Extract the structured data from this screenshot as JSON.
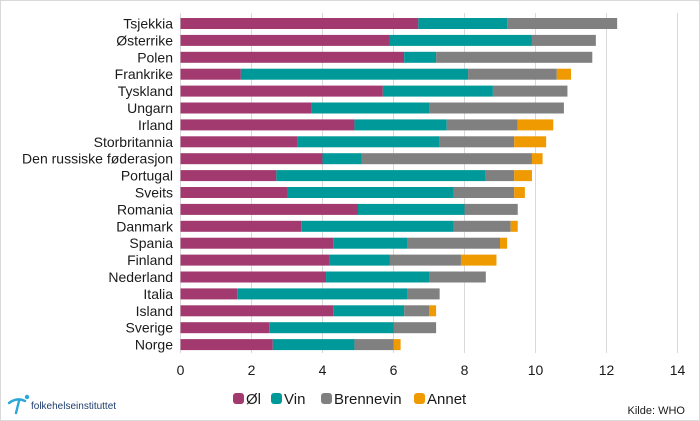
{
  "chart_data": {
    "type": "bar",
    "orientation": "horizontal",
    "stacked": true,
    "title": "",
    "xlabel": "",
    "ylabel": "",
    "xlim": [
      0,
      14
    ],
    "xticks": [
      "0",
      "2",
      "4",
      "6",
      "8",
      "10",
      "12",
      "14"
    ],
    "grid": true,
    "legend_position": "bottom",
    "categories": [
      "Tsjekkia",
      "Østerrike",
      "Polen",
      "Frankrike",
      "Tyskland",
      "Ungarn",
      "Irland",
      "Storbritannia",
      "Den russiske føderasjon",
      "Portugal",
      "Sveits",
      "Romania",
      "Danmark",
      "Spania",
      "Finland",
      "Nederland",
      "Italia",
      "Island",
      "Sverige",
      "Norge"
    ],
    "series": [
      {
        "name": "Øl",
        "color": "#A23A6F",
        "values": [
          6.7,
          5.9,
          6.3,
          1.7,
          5.7,
          3.7,
          4.9,
          3.3,
          4.0,
          2.7,
          3.0,
          5.0,
          3.4,
          4.3,
          4.2,
          4.1,
          1.6,
          4.3,
          2.5,
          2.6
        ]
      },
      {
        "name": "Vin",
        "color": "#009999",
        "values": [
          2.5,
          4.0,
          0.9,
          6.4,
          3.1,
          3.3,
          2.6,
          4.0,
          1.1,
          5.9,
          4.7,
          3.0,
          4.3,
          2.1,
          1.7,
          2.9,
          4.8,
          2.0,
          3.5,
          2.3
        ]
      },
      {
        "name": "Brennevin",
        "color": "#808080",
        "values": [
          3.1,
          1.8,
          4.4,
          2.5,
          2.1,
          3.8,
          2.0,
          2.1,
          4.8,
          0.8,
          1.7,
          1.5,
          1.6,
          2.6,
          2.0,
          1.6,
          0.9,
          0.7,
          1.2,
          1.1
        ]
      },
      {
        "name": "Annet",
        "color": "#EE9A00",
        "values": [
          0,
          0,
          0,
          0.4,
          0,
          0,
          1.0,
          0.9,
          0.3,
          0.5,
          0.3,
          0,
          0.2,
          0.2,
          1.0,
          0,
          0,
          0.2,
          0,
          0.2
        ]
      }
    ]
  },
  "source": "Kilde: WHO",
  "logo": {
    "text": "folkehelseinstituttet",
    "color": "#1d3c6e",
    "accent": "#2aa7d8"
  }
}
